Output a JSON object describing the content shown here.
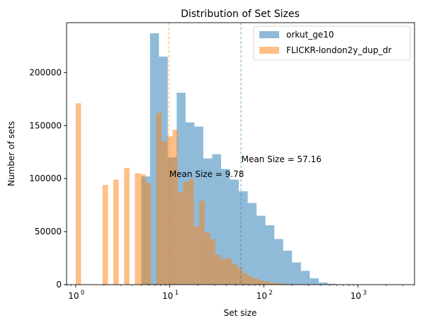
{
  "chart_data": {
    "type": "bar",
    "title": "Distribution of Set Sizes",
    "xlabel": "Set size",
    "ylabel": "Number of sets",
    "xscale": "log",
    "xlim": [
      0.8,
      4000
    ],
    "ylim": [
      0,
      247000
    ],
    "grid": false,
    "legend_position": "top-right",
    "x_ticks": [
      {
        "value": 1,
        "base": "10",
        "exp": "0"
      },
      {
        "value": 10,
        "base": "10",
        "exp": "1"
      },
      {
        "value": 100,
        "base": "10",
        "exp": "2"
      },
      {
        "value": 1000,
        "base": "10",
        "exp": "3"
      }
    ],
    "y_ticks": [
      0,
      50000,
      100000,
      150000,
      200000
    ],
    "series": [
      {
        "name": "orkut_ge10",
        "color": "#1f77b4",
        "opacity": 0.5,
        "bin_edges": [
          4.0,
          4.97,
          6.17,
          7.67,
          9.53,
          11.84,
          14.72,
          18.29,
          22.73,
          28.25,
          35.1,
          43.62,
          54.2,
          67.36,
          83.71,
          104.02,
          129.27,
          160.64,
          199.62,
          248.06,
          308.27,
          383.08,
          476.04,
          591.57,
          735.13,
          913.53,
          1135.23,
          1410.73,
          1753.09,
          2178.54,
          2707.25,
          3364.26
        ],
        "values": [
          0,
          102000,
          237000,
          215000,
          120000,
          181000,
          153000,
          149000,
          119000,
          123000,
          109000,
          99000,
          88000,
          77000,
          65000,
          56000,
          43000,
          32000,
          21000,
          13000,
          6000,
          2000,
          800,
          300,
          120,
          50,
          20,
          10,
          5,
          2,
          1
        ]
      },
      {
        "name": "FLICKR-london2y_dup_dr",
        "color": "#ff7f0e",
        "opacity": 0.5,
        "bin_edges": [
          1.0,
          1.14,
          1.3,
          1.48,
          1.69,
          1.93,
          2.2,
          2.51,
          2.86,
          3.27,
          3.73,
          4.25,
          4.85,
          5.53,
          6.31,
          7.2,
          8.21,
          9.36,
          10.68,
          12.18,
          13.9,
          15.85,
          18.08,
          20.63,
          23.53,
          26.84,
          30.62,
          34.93,
          39.84,
          45.45,
          51.85,
          59.15,
          67.47,
          76.97,
          87.8,
          100.16,
          114.26,
          130.34,
          148.68,
          169.61,
          193.48,
          220.7,
          251.77,
          287.2,
          327.62,
          373.73,
          426.33,
          486.33,
          554.78,
          632.86,
          721.92,
          823.53,
          939.43,
          1071.64,
          1222.46,
          1394.5,
          1590.76
        ],
        "values": [
          171000,
          0,
          0,
          0,
          0,
          94000,
          0,
          99000,
          0,
          110000,
          0,
          105000,
          104000,
          96000,
          0,
          162000,
          135000,
          140000,
          146000,
          87000,
          97000,
          99000,
          55000,
          79000,
          49000,
          43000,
          28000,
          24000,
          25000,
          20000,
          16000,
          11000,
          8000,
          6000,
          4000,
          3000,
          2000,
          1500,
          1000,
          600,
          400,
          250,
          150,
          100,
          60,
          40,
          25,
          15,
          10,
          6,
          4,
          2,
          1,
          1,
          0,
          0
        ]
      }
    ],
    "mean_lines": [
      {
        "series": "orkut_ge10",
        "x": 57.16,
        "color": "#1f77b4",
        "label": "Mean Size = 57.16",
        "label_y": 118000
      },
      {
        "series": "FLICKR-london2y_dup_dr",
        "x": 9.78,
        "color": "#ff7f0e",
        "label": "Mean Size = 9.78",
        "label_y": 104000
      }
    ]
  }
}
